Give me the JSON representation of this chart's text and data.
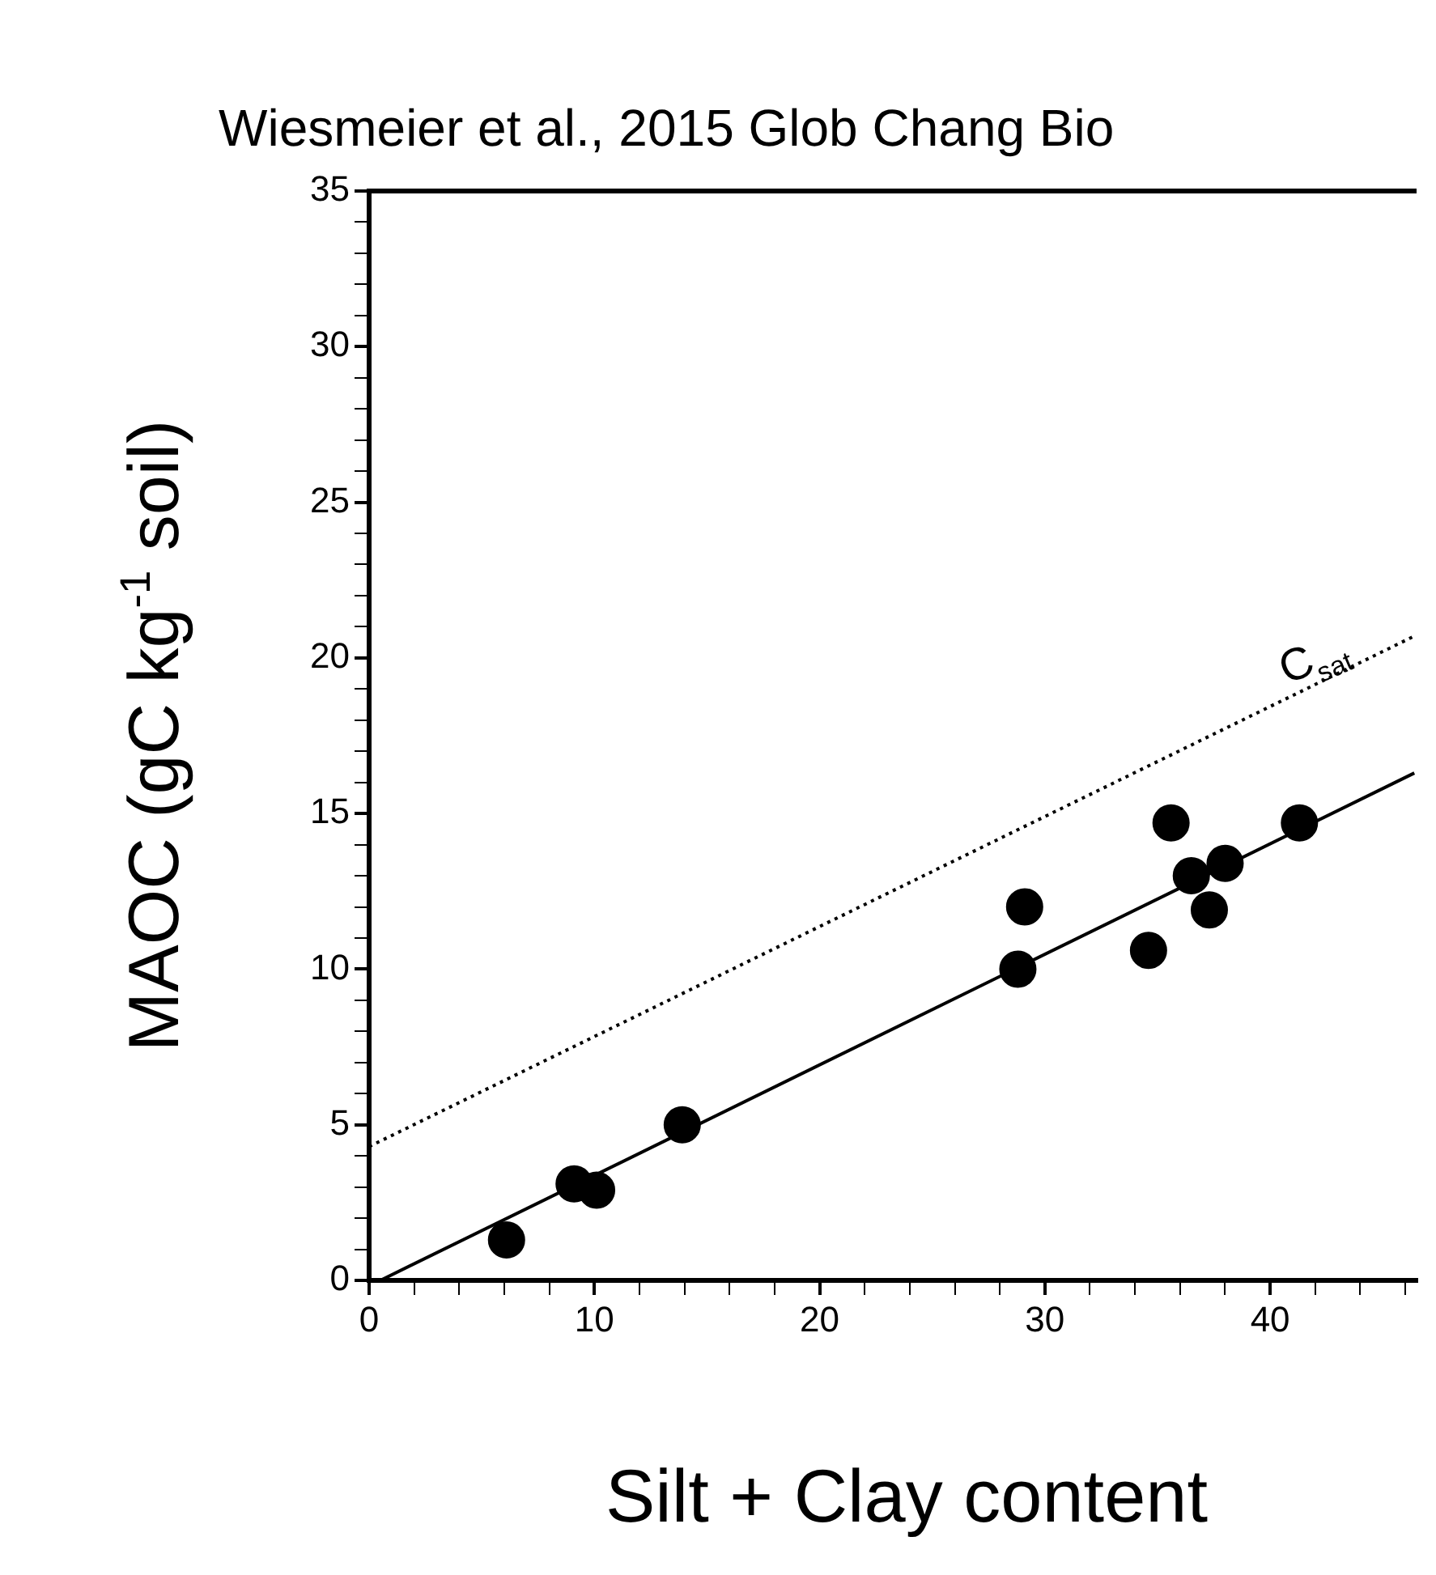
{
  "chart_data": {
    "type": "scatter",
    "title": "Wiesmeier et al., 2015 Glob Chang Bio",
    "xlabel": "Silt + Clay content",
    "ylabel": "MAOC (gC kg$^{-1}$ soil)",
    "annotations": [
      "C$_{sat}$"
    ],
    "series": [
      {
        "marker": "circle",
        "color": "#000000",
        "x": [
          6.1,
          9.1,
          10.1,
          13.9,
          28.8,
          29.1,
          34.6,
          35.6,
          36.5,
          37.3,
          38.0,
          41.3
        ],
        "values": [
          1.3,
          3.1,
          2.9,
          5.0,
          10.0,
          12.0,
          10.6,
          14.7,
          13.0,
          11.9,
          13.4,
          14.7
        ]
      },
      {
        "type": "line",
        "marker": "none",
        "color": "#000000",
        "line_style": "solid",
        "x": [
          0.5,
          46.4
        ],
        "values": [
          0,
          16.3
        ]
      },
      {
        "type": "line",
        "marker": "none",
        "color": "#000000",
        "line_style": "dotted",
        "x": [
          0,
          46.4
        ],
        "values": [
          4.3,
          20.7
        ]
      }
    ],
    "grid": false,
    "legend": false,
    "xlim": [
      0,
      46.5
    ],
    "ylim": [
      0,
      35
    ],
    "xticks": [
      0,
      {
        "value": 2,
        "label": null
      },
      {
        "value": 4,
        "label": null
      },
      {
        "value": 6,
        "label": null
      },
      {
        "value": 8,
        "label": null
      },
      10,
      {
        "value": 12,
        "label": null
      },
      {
        "value": 14,
        "label": null
      },
      {
        "value": 16,
        "label": null
      },
      {
        "value": 18,
        "label": null
      },
      20,
      {
        "value": 22,
        "label": null
      },
      {
        "value": 24,
        "label": null
      },
      {
        "value": 26,
        "label": null
      },
      {
        "value": 28,
        "label": null
      },
      30,
      {
        "value": 32,
        "label": null
      },
      {
        "value": 34,
        "label": null
      },
      {
        "value": 36,
        "label": null
      },
      {
        "value": 38,
        "label": null
      },
      40,
      {
        "value": 42,
        "label": null
      },
      {
        "value": 44,
        "label": null
      },
      {
        "value": 46,
        "label": null
      }
    ],
    "yticks": [
      0,
      {
        "value": 1,
        "label": null
      },
      {
        "value": 2,
        "label": null
      },
      {
        "value": 3,
        "label": null
      },
      {
        "value": 4,
        "label": null
      },
      5,
      {
        "value": 6,
        "label": null
      },
      {
        "value": 7,
        "label": null
      },
      {
        "value": 8,
        "label": null
      },
      {
        "value": 9,
        "label": null
      },
      10,
      {
        "value": 11,
        "label": null
      },
      {
        "value": 12,
        "label": null
      },
      {
        "value": 13,
        "label": null
      },
      {
        "value": 14,
        "label": null
      },
      15,
      {
        "value": 16,
        "label": null
      },
      {
        "value": 17,
        "label": null
      },
      {
        "value": 18,
        "label": null
      },
      {
        "value": 19,
        "label": null
      },
      20,
      {
        "value": 21,
        "label": null
      },
      {
        "value": 22,
        "label": null
      },
      {
        "value": 23,
        "label": null
      },
      {
        "value": 24,
        "label": null
      },
      25,
      {
        "value": 26,
        "label": null
      },
      {
        "value": 27,
        "label": null
      },
      {
        "value": 28,
        "label": null
      },
      {
        "value": 29,
        "label": null
      },
      30,
      {
        "value": 31,
        "label": null
      },
      {
        "value": 32,
        "label": null
      },
      {
        "value": 33,
        "label": null
      },
      {
        "value": 34,
        "label": null
      },
      35
    ]
  }
}
